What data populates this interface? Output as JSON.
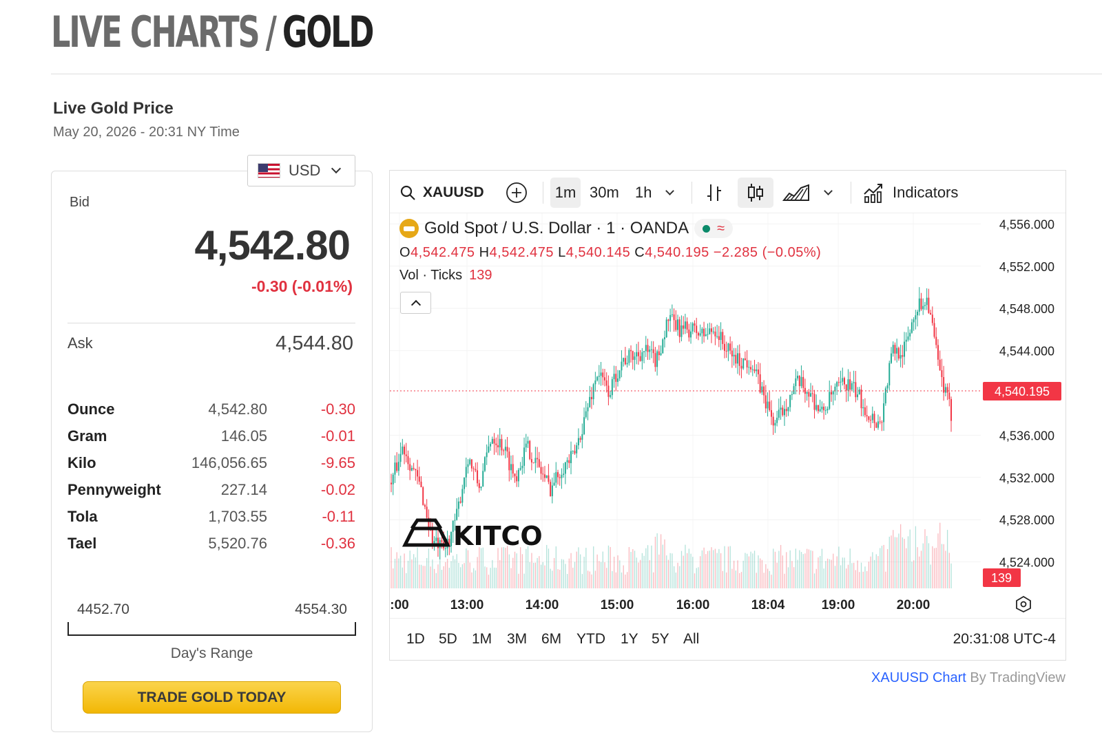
{
  "page": {
    "title_crumb": "LIVE CHARTS",
    "title_sep": "/",
    "title_current": "GOLD"
  },
  "price_panel": {
    "heading": "Live Gold Price",
    "timestamp": "May 20, 2026 - 20:31 NY Time",
    "currency": "USD",
    "bid_label": "Bid",
    "bid": "4,542.80",
    "bid_change": "-0.30 (-0.01%)",
    "ask_label": "Ask",
    "ask": "4,544.80",
    "units": [
      {
        "name": "Ounce",
        "price": "4,542.80",
        "change": "-0.30"
      },
      {
        "name": "Gram",
        "price": "146.05",
        "change": "-0.01"
      },
      {
        "name": "Kilo",
        "price": "146,056.65",
        "change": "-9.65"
      },
      {
        "name": "Pennyweight",
        "price": "227.14",
        "change": "-0.02"
      },
      {
        "name": "Tola",
        "price": "1,703.55",
        "change": "-0.11"
      },
      {
        "name": "Tael",
        "price": "5,520.76",
        "change": "-0.36"
      }
    ],
    "day_range_low": "4452.70",
    "day_range_high": "4554.30",
    "day_range_label": "Day's Range",
    "trade_button": "TRADE GOLD TODAY"
  },
  "chart_widget": {
    "symbol": "XAUUSD",
    "intervals": [
      "1m",
      "30m",
      "1h"
    ],
    "active_interval": "1m",
    "indicators_label": "Indicators",
    "legend": {
      "name": "Gold Spot / U.S. Dollar · 1 · OANDA",
      "o_label": "O",
      "o": "4,542.475",
      "h_label": "H",
      "h": "4,542.475",
      "l_label": "L",
      "l": "4,540.145",
      "c_label": "C",
      "c": "4,540.195",
      "change": "−2.285 (−0.05%)",
      "vol_label": "Vol · Ticks",
      "vol": "139"
    },
    "watermark": "KITCO",
    "last_price_label": "4,540.195",
    "volume_label": "139",
    "ranges": [
      "1D",
      "5D",
      "1M",
      "3M",
      "6M",
      "YTD",
      "1Y",
      "5Y",
      "All"
    ],
    "clock": "20:31:08 UTC-4",
    "colors": {
      "up": "#22ab94",
      "down": "#f23645",
      "last_price": "#f23645"
    }
  },
  "attribution": {
    "link": "XAUUSD Chart",
    "rest": " By TradingView"
  },
  "chart_data": {
    "type": "candlestick",
    "title": "Gold Spot / U.S. Dollar · 1 · OANDA",
    "x_ticks": [
      ":00",
      "13:00",
      "14:00",
      "15:00",
      "16:00",
      "18:04",
      "19:00",
      "20:00"
    ],
    "y_ticks": [
      "4,556.000",
      "4,552.000",
      "4,548.000",
      "4,544.000",
      "4,536.000",
      "4,532.000",
      "4,528.000",
      "4,524.000"
    ],
    "y_tick_values": [
      4556,
      4552,
      4548,
      4544,
      4536,
      4532,
      4528,
      4524
    ],
    "ylim": [
      4521.5,
      4557
    ],
    "last_price": 4540.195,
    "price_path": [
      [
        0,
        4531.5
      ],
      [
        2,
        4535
      ],
      [
        5,
        4531
      ],
      [
        7,
        4526
      ],
      [
        9,
        4525
      ],
      [
        11,
        4528
      ],
      [
        13,
        4534
      ],
      [
        15,
        4531
      ],
      [
        17,
        4536
      ],
      [
        19,
        4535
      ],
      [
        21,
        4532
      ],
      [
        23,
        4535
      ],
      [
        25,
        4533
      ],
      [
        27,
        4531
      ],
      [
        29,
        4533
      ],
      [
        31,
        4534
      ],
      [
        33,
        4538
      ],
      [
        35,
        4542
      ],
      [
        37,
        4540
      ],
      [
        39,
        4543
      ],
      [
        41,
        4543.5
      ],
      [
        43,
        4544
      ],
      [
        45,
        4543
      ],
      [
        47,
        4547
      ],
      [
        49,
        4546
      ],
      [
        51,
        4546
      ],
      [
        53,
        4545.5
      ],
      [
        55,
        4546
      ],
      [
        57,
        4544
      ],
      [
        59,
        4543
      ],
      [
        61,
        4543
      ],
      [
        63,
        4540
      ],
      [
        65,
        4537
      ],
      [
        67,
        4539
      ],
      [
        69,
        4541
      ],
      [
        71,
        4540
      ],
      [
        73,
        4538
      ],
      [
        75,
        4540
      ],
      [
        77,
        4541
      ],
      [
        79,
        4540
      ],
      [
        81,
        4538
      ],
      [
        83,
        4537
      ],
      [
        85,
        4544
      ],
      [
        87,
        4544
      ],
      [
        89,
        4548
      ],
      [
        91,
        4549
      ],
      [
        93,
        4542
      ],
      [
        95,
        4538
      ]
    ],
    "volume_range": [
      0,
      139
    ]
  }
}
